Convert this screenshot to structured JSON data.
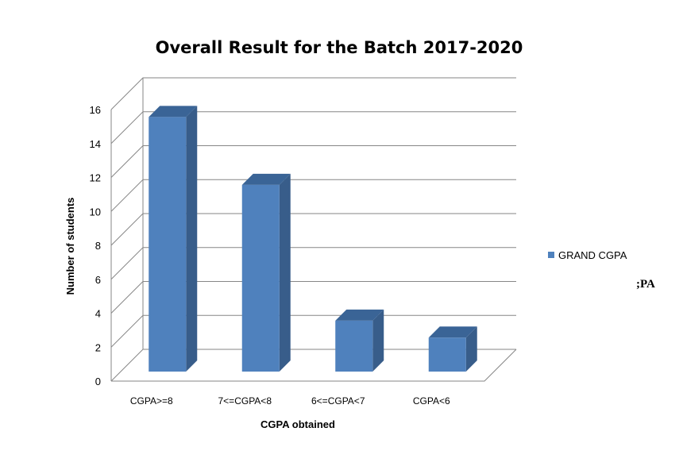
{
  "chart_data": {
    "type": "bar",
    "title": "Overall Result for the Batch 2017-2020",
    "xlabel": "CGPA obtained",
    "ylabel": "Number of students",
    "categories": [
      "CGPA>=8",
      "7<=CGPA<8",
      "6<=CGPA<7",
      "CGPA<6"
    ],
    "series": [
      {
        "name": "GRAND CGPA",
        "values": [
          15,
          11,
          3,
          2
        ]
      }
    ],
    "ylim": [
      0,
      16
    ],
    "yticks": [
      "0",
      "2",
      "4",
      "6",
      "8",
      "10",
      "12",
      "14",
      "16"
    ],
    "grid": true,
    "legend_position": "right",
    "style": "3d-column",
    "colors": {
      "bar_front": "#4f81bd",
      "bar_side": "#385d8a",
      "bar_top": "#3a6496",
      "grid": "#868686"
    }
  },
  "stray_text": ";PA"
}
